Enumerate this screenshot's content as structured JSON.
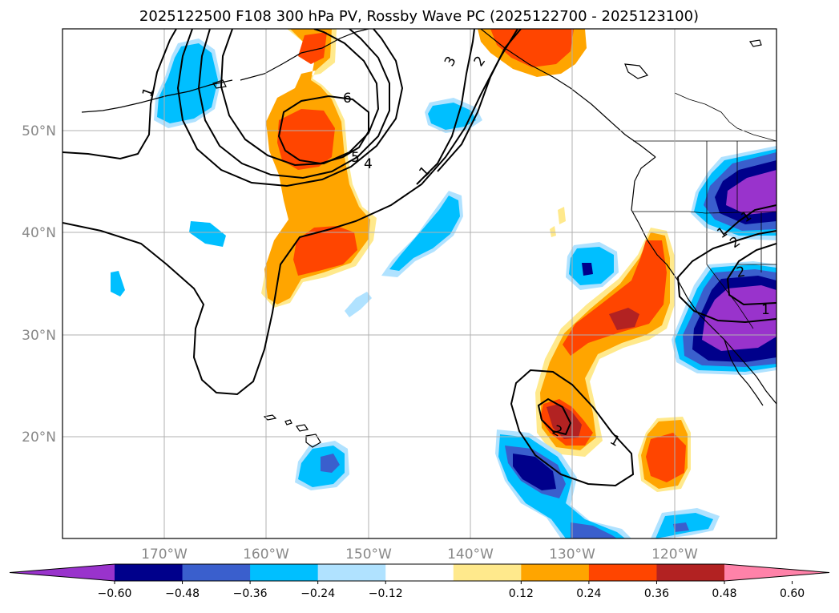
{
  "title": "2025122500 F108 300 hPa PV, Rossby Wave PC (2025122700 - 2025123100)",
  "lat_labels": [
    "50°N",
    "40°N",
    "30°N",
    "20°N"
  ],
  "lon_labels": [
    "170°W",
    "160°W",
    "150°W",
    "140°W",
    "130°W",
    "120°W"
  ],
  "colorbar": {
    "ticks": [
      "−0.60",
      "−0.48",
      "−0.36",
      "−0.24",
      "−0.12",
      "0.12",
      "0.24",
      "0.36",
      "0.48",
      "0.60"
    ],
    "colors": [
      "#9933cc",
      "#00008b",
      "#3a5fcd",
      "#00bfff",
      "#b0e2ff",
      "#ffffff",
      "#ffe98c",
      "#ffa500",
      "#ff4500",
      "#b22222",
      "#ff82a9"
    ]
  },
  "contour_labels": [
    "1",
    "6",
    "3",
    "2",
    "5",
    "4",
    "1",
    "1",
    "2",
    "1",
    "2",
    "1",
    "2",
    "1"
  ],
  "colors": {
    "coast": "#000000",
    "grid": "#b0b0b0",
    "contour": "#000000"
  }
}
